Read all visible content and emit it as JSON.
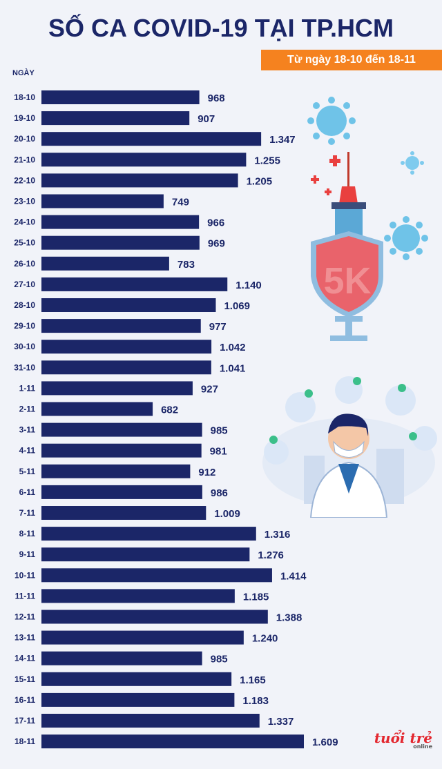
{
  "header": {
    "title": "SỐ CA COVID-19 TẠI TP.HCM",
    "subtitle": "Từ ngày 18-10 đến 18-11",
    "y_axis_label": "NGÀY"
  },
  "logo": {
    "text": "tuổi trẻ",
    "subtext": "online"
  },
  "illustrations": {
    "vaccine": "syringe-shield-5k-icon",
    "doctor": "doctor-with-mask-icon",
    "shield_text": "5K"
  },
  "colors": {
    "bar": "#1b2668",
    "title": "#1b2668",
    "subtitle_bg": "#f5821f",
    "background": "#f1f3f9"
  },
  "chart_data": {
    "type": "bar",
    "orientation": "horizontal",
    "title": "SỐ CA COVID-19 TẠI TP.HCM",
    "subtitle": "Từ ngày 18-10 đến 18-11",
    "ylabel": "NGÀY",
    "xlabel": "",
    "xlim": [
      0,
      1609
    ],
    "grid": false,
    "categories": [
      "18-10",
      "19-10",
      "20-10",
      "21-10",
      "22-10",
      "23-10",
      "24-10",
      "25-10",
      "26-10",
      "27-10",
      "28-10",
      "29-10",
      "30-10",
      "31-10",
      "1-11",
      "2-11",
      "3-11",
      "4-11",
      "5-11",
      "6-11",
      "7-11",
      "8-11",
      "9-11",
      "10-11",
      "11-11",
      "12-11",
      "13-11",
      "14-11",
      "15-11",
      "16-11",
      "17-11",
      "18-11"
    ],
    "values": [
      968,
      907,
      1347,
      1255,
      1205,
      749,
      966,
      969,
      783,
      1140,
      1069,
      977,
      1042,
      1041,
      927,
      682,
      985,
      981,
      912,
      986,
      1009,
      1316,
      1276,
      1414,
      1185,
      1388,
      1240,
      985,
      1165,
      1183,
      1337,
      1609
    ],
    "value_labels": [
      "968",
      "907",
      "1.347",
      "1.255",
      "1.205",
      "749",
      "966",
      "969",
      "783",
      "1.140",
      "1.069",
      "977",
      "1.042",
      "1.041",
      "927",
      "682",
      "985",
      "981",
      "912",
      "986",
      "1.009",
      "1.316",
      "1.276",
      "1.414",
      "1.185",
      "1.388",
      "1.240",
      "985",
      "1.165",
      "1.183",
      "1.337",
      "1.609"
    ]
  }
}
